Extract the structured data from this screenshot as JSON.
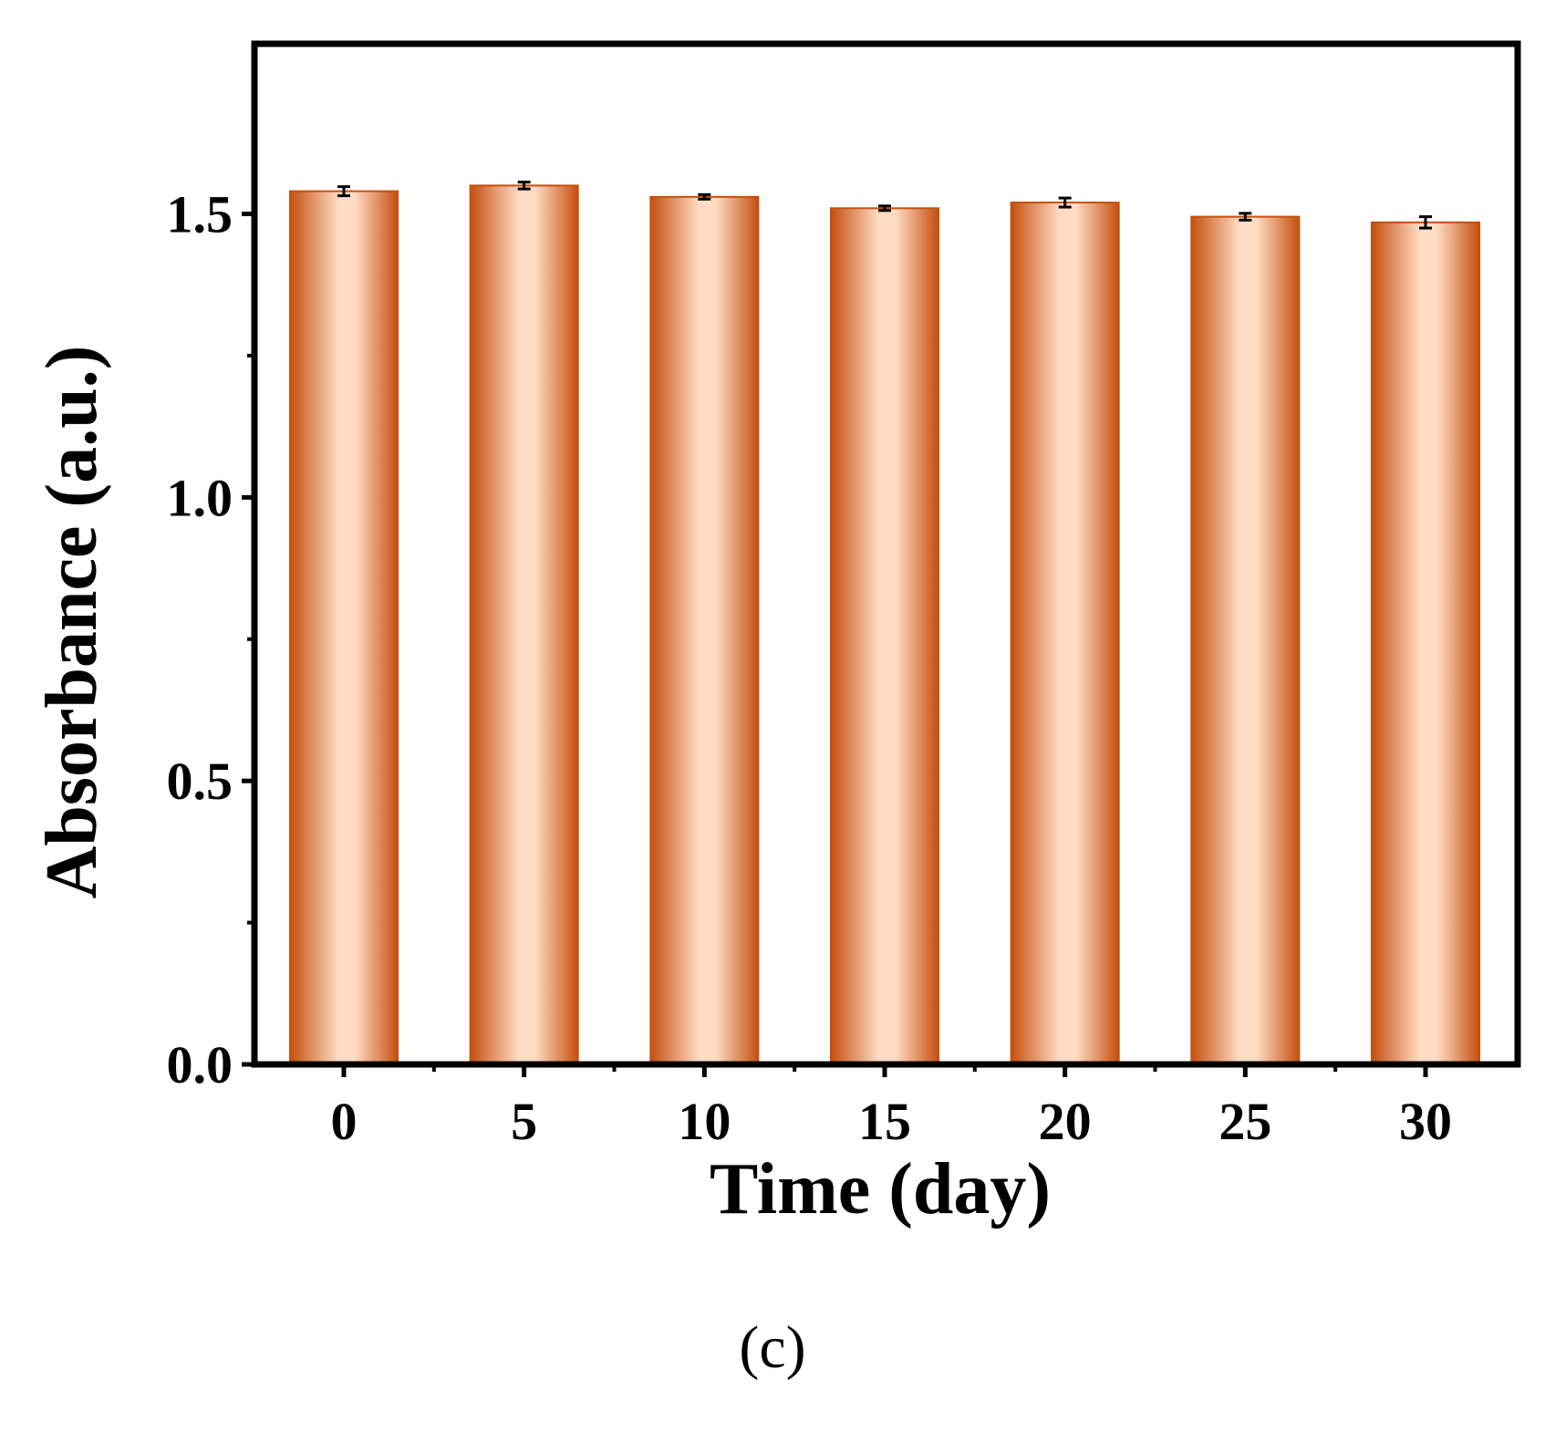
{
  "chart_data": {
    "type": "bar",
    "title": "",
    "xlabel": "Time (day)",
    "ylabel": "Absorbance (a.u.)",
    "categories": [
      "0",
      "5",
      "10",
      "15",
      "20",
      "25",
      "30"
    ],
    "values": [
      1.54,
      1.55,
      1.53,
      1.51,
      1.52,
      1.495,
      1.485
    ],
    "errors": [
      0.008,
      0.006,
      0.004,
      0.004,
      0.008,
      0.006,
      0.01
    ],
    "ylim": [
      0,
      1.8
    ],
    "yticks": [
      "0.0",
      "0.5",
      "1.0",
      "1.5"
    ],
    "ytick_values": [
      0,
      0.5,
      1.0,
      1.5
    ],
    "y_minor_ticks": [
      0.25,
      0.75,
      1.25
    ],
    "grid": false,
    "legend": "none",
    "colors": {
      "bar_edge": "#c5500f",
      "bar_center": "#ffdcc3",
      "axis": "#000000"
    }
  },
  "panel_label": "(c)"
}
